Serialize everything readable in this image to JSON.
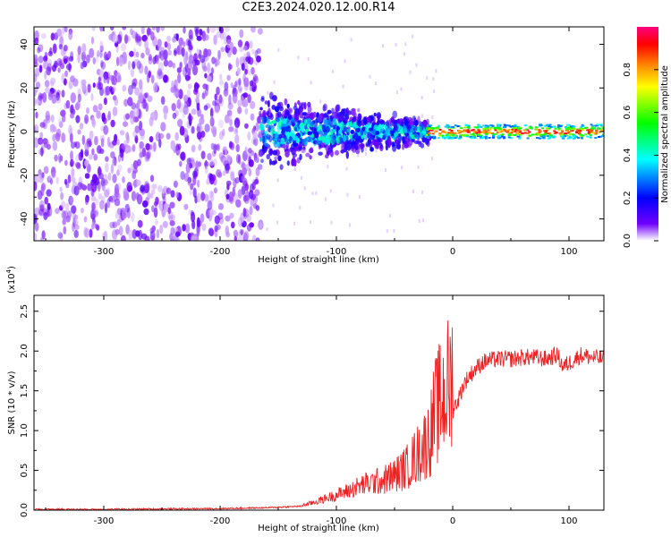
{
  "page": {
    "title": "C2E3.2024.020.12.00.R14"
  },
  "colors": {
    "snr_line": "#ee2222",
    "frame": "#000000"
  },
  "chart_data": [
    {
      "type": "heatmap",
      "title": "C2E3.2024.020.12.00.R14",
      "xlabel": "Height of straight line (km)",
      "ylabel": "Frequency (Hz)",
      "xlim": [
        -360,
        130
      ],
      "ylim": [
        -50,
        48
      ],
      "x_ticks": [
        -300,
        -200,
        -100,
        0,
        100
      ],
      "y_ticks": [
        -40,
        -20,
        0,
        20,
        40
      ],
      "colorbar": {
        "label": "Normalized spectral amplitude",
        "range": [
          0.0,
          1.0
        ],
        "ticks": [
          "0.0",
          "0.2",
          "0.4",
          "0.6",
          "0.8"
        ],
        "colormap": [
          "#ffffff",
          "#7000ff",
          "#0000ff",
          "#00ffff",
          "#00ff00",
          "#ffff00",
          "#ff8800",
          "#ff0000",
          "#ff0080"
        ]
      },
      "regions": [
        {
          "x_range": [
            -360,
            -165
          ],
          "freq_range": [
            -50,
            48
          ],
          "amplitude": 0.1,
          "description": "noise"
        },
        {
          "x_range": [
            -165,
            -20
          ],
          "freq_range": [
            -15,
            15
          ],
          "amplitude": 0.3
        },
        {
          "x_range": [
            -20,
            130
          ],
          "freq_range": [
            -3,
            3
          ],
          "amplitude": 0.6
        }
      ]
    },
    {
      "type": "line",
      "xlabel": "Height of straight line (km)",
      "ylabel": "SNR (10 * v/v)",
      "y_multiplier": "(x10",
      "y_multiplier_exp": "4",
      "xlim": [
        -360,
        130
      ],
      "ylim": [
        0,
        2.7
      ],
      "x_ticks": [
        -300,
        -200,
        -100,
        0,
        100
      ],
      "y_ticks": [
        "0.0",
        "0.5",
        "1.0",
        "1.5",
        "2.0",
        "2.5"
      ],
      "series": [
        {
          "x": [
            -360,
            -300,
            -200,
            -160,
            -130,
            -120,
            -110,
            -100,
            -90,
            -80,
            -70,
            -60,
            -50,
            -40,
            -30,
            -20,
            -15,
            -10,
            -5,
            0,
            5,
            10,
            15,
            20,
            25,
            30,
            40,
            50,
            60,
            70,
            80,
            90,
            95,
            100,
            105,
            110,
            120,
            130
          ],
          "y": [
            0.01,
            0.01,
            0.02,
            0.03,
            0.05,
            0.08,
            0.12,
            0.16,
            0.2,
            0.25,
            0.28,
            0.3,
            0.35,
            0.42,
            0.55,
            0.7,
            0.95,
            1.05,
            1.15,
            1.25,
            1.4,
            1.6,
            1.7,
            1.78,
            1.85,
            1.88,
            1.9,
            1.9,
            1.92,
            1.92,
            1.9,
            1.95,
            1.8,
            1.85,
            1.9,
            1.95,
            1.92,
            1.9
          ]
        }
      ]
    }
  ]
}
